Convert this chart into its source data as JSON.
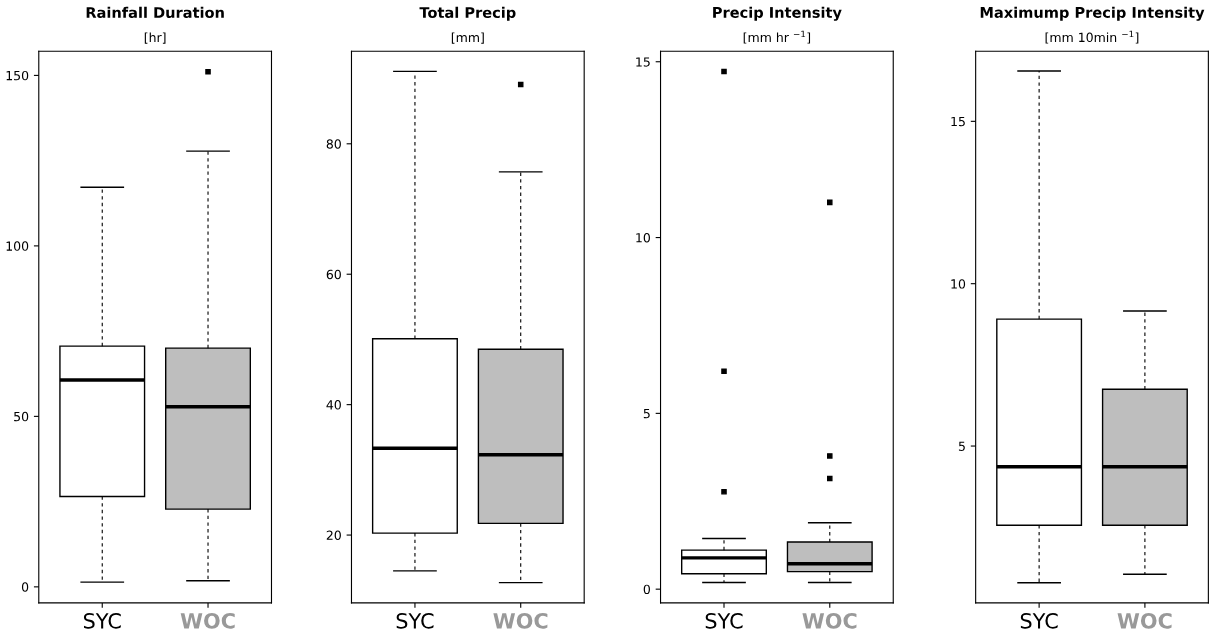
{
  "chart_data": [
    {
      "type": "box",
      "title": "Rainfall Duration",
      "subtitle": "[hr]",
      "categories": [
        "SYC",
        "WOC"
      ],
      "colors": [
        "#ffffff",
        "#bebebe"
      ],
      "ylim": [
        -4.7,
        157.1
      ],
      "yticks": [
        0,
        50,
        100,
        150
      ],
      "grid": false,
      "legend": false,
      "marker": "square",
      "boxes": [
        {
          "low": 1.4,
          "q1": 26.5,
          "median": 60.7,
          "q3": 70.6,
          "high": 117.2
        },
        {
          "low": 1.8,
          "q1": 22.8,
          "median": 52.8,
          "q3": 70.0,
          "high": 127.8,
          "outliers": [
            151.1
          ]
        }
      ]
    },
    {
      "type": "box",
      "title": "Total Precip",
      "subtitle": "[mm]",
      "categories": [
        "SYC",
        "WOC"
      ],
      "colors": [
        "#ffffff",
        "#bebebe"
      ],
      "ylim": [
        9.6,
        94.2
      ],
      "yticks": [
        20,
        40,
        60,
        80
      ],
      "grid": false,
      "legend": false,
      "marker": "square",
      "boxes": [
        {
          "low": 14.5,
          "q1": 20.3,
          "median": 33.3,
          "q3": 50.1,
          "high": 91.1
        },
        {
          "low": 12.7,
          "q1": 21.8,
          "median": 32.3,
          "q3": 48.5,
          "high": 75.7,
          "outliers": [
            89.1
          ]
        }
      ]
    },
    {
      "type": "box",
      "title": "Precip Intensity",
      "subtitle": "[mm hr $^{−1}$]",
      "categories": [
        "SYC",
        "WOC"
      ],
      "colors": [
        "#ffffff",
        "#bebebe"
      ],
      "ylim": [
        -0.39,
        15.3
      ],
      "yticks": [
        0,
        5,
        10,
        15
      ],
      "grid": false,
      "legend": false,
      "marker": "square",
      "boxes": [
        {
          "low": 0.19,
          "q1": 0.44,
          "median": 0.89,
          "q3": 1.11,
          "high": 1.44,
          "outliers": [
            2.77,
            6.2,
            14.72
          ]
        },
        {
          "low": 0.19,
          "q1": 0.5,
          "median": 0.72,
          "q3": 1.34,
          "high": 1.89,
          "outliers": [
            3.15,
            3.79,
            11.0
          ]
        }
      ]
    },
    {
      "type": "box",
      "title": "Maximump Precip Intensity",
      "subtitle": "[mm 10min $^{−1}$]",
      "categories": [
        "SYC",
        "WOC"
      ],
      "colors": [
        "#ffffff",
        "#bebebe"
      ],
      "ylim": [
        0.17,
        17.16
      ],
      "yticks": [
        5,
        10,
        15
      ],
      "grid": false,
      "legend": false,
      "marker": "square",
      "boxes": [
        {
          "low": 0.79,
          "q1": 2.56,
          "median": 4.36,
          "q3": 8.91,
          "high": 16.55
        },
        {
          "low": 1.05,
          "q1": 2.56,
          "median": 4.36,
          "q3": 6.75,
          "high": 9.16
        }
      ]
    }
  ]
}
